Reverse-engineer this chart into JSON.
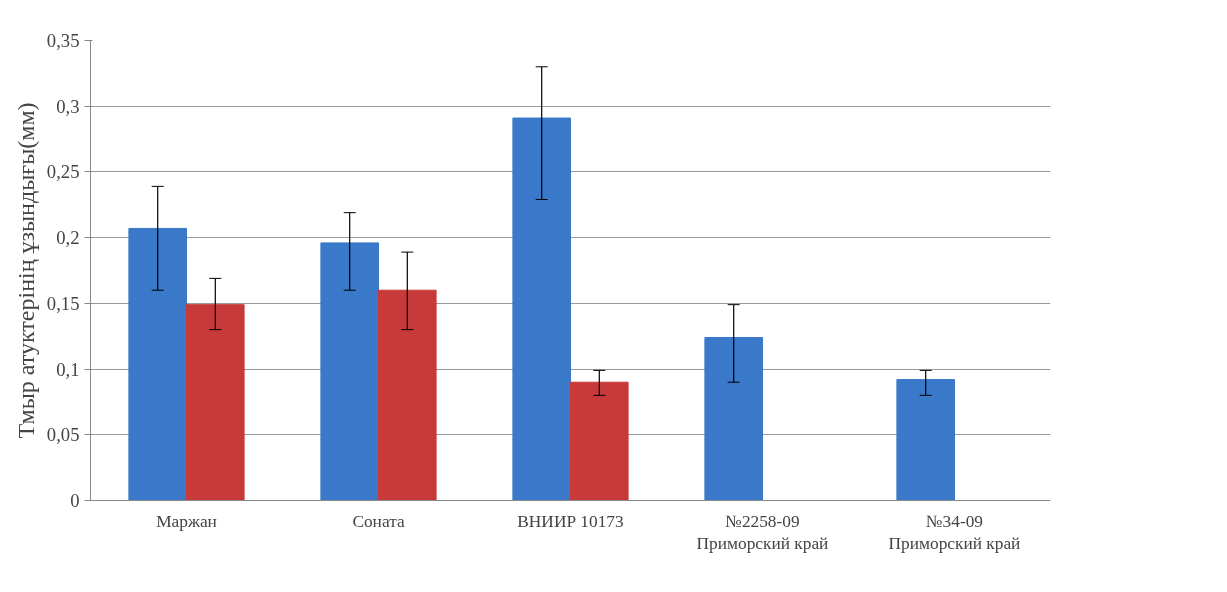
{
  "chart_data": {
    "type": "bar",
    "ylabel": "Тмыр атуктерінің ұзындығы(мм)",
    "categories": [
      "Маржан",
      "Соната",
      "ВНИИР 10173",
      "№2258-09\nПриморский край",
      "№34-09\nПриморский край"
    ],
    "series": [
      {
        "color": "#3a78c9",
        "values": [
          0.207,
          0.196,
          0.291,
          0.124,
          0.092
        ],
        "errors": [
          [
            0.16,
            0.239
          ],
          [
            0.16,
            0.219
          ],
          [
            0.229,
            0.33
          ],
          [
            0.09,
            0.149
          ],
          [
            0.08,
            0.099
          ]
        ]
      },
      {
        "color": "#c83a3a",
        "values": [
          0.149,
          0.16,
          0.09,
          0,
          0
        ],
        "errors": [
          [
            0.13,
            0.169
          ],
          [
            0.13,
            0.189
          ],
          [
            0.08,
            0.099
          ],
          null,
          null
        ]
      }
    ],
    "ylim": [
      0,
      0.35
    ],
    "yticks": [
      {
        "value": 0,
        "label": "0"
      },
      {
        "value": 0.05,
        "label": "0,05"
      },
      {
        "value": 0.1,
        "label": "0,1"
      },
      {
        "value": 0.15,
        "label": "0,15"
      },
      {
        "value": 0.2,
        "label": "0,2"
      },
      {
        "value": 0.25,
        "label": "0,25"
      },
      {
        "value": 0.3,
        "label": "0,3"
      },
      {
        "value": 0.35,
        "label": "0,35"
      }
    ],
    "grid": "y"
  }
}
